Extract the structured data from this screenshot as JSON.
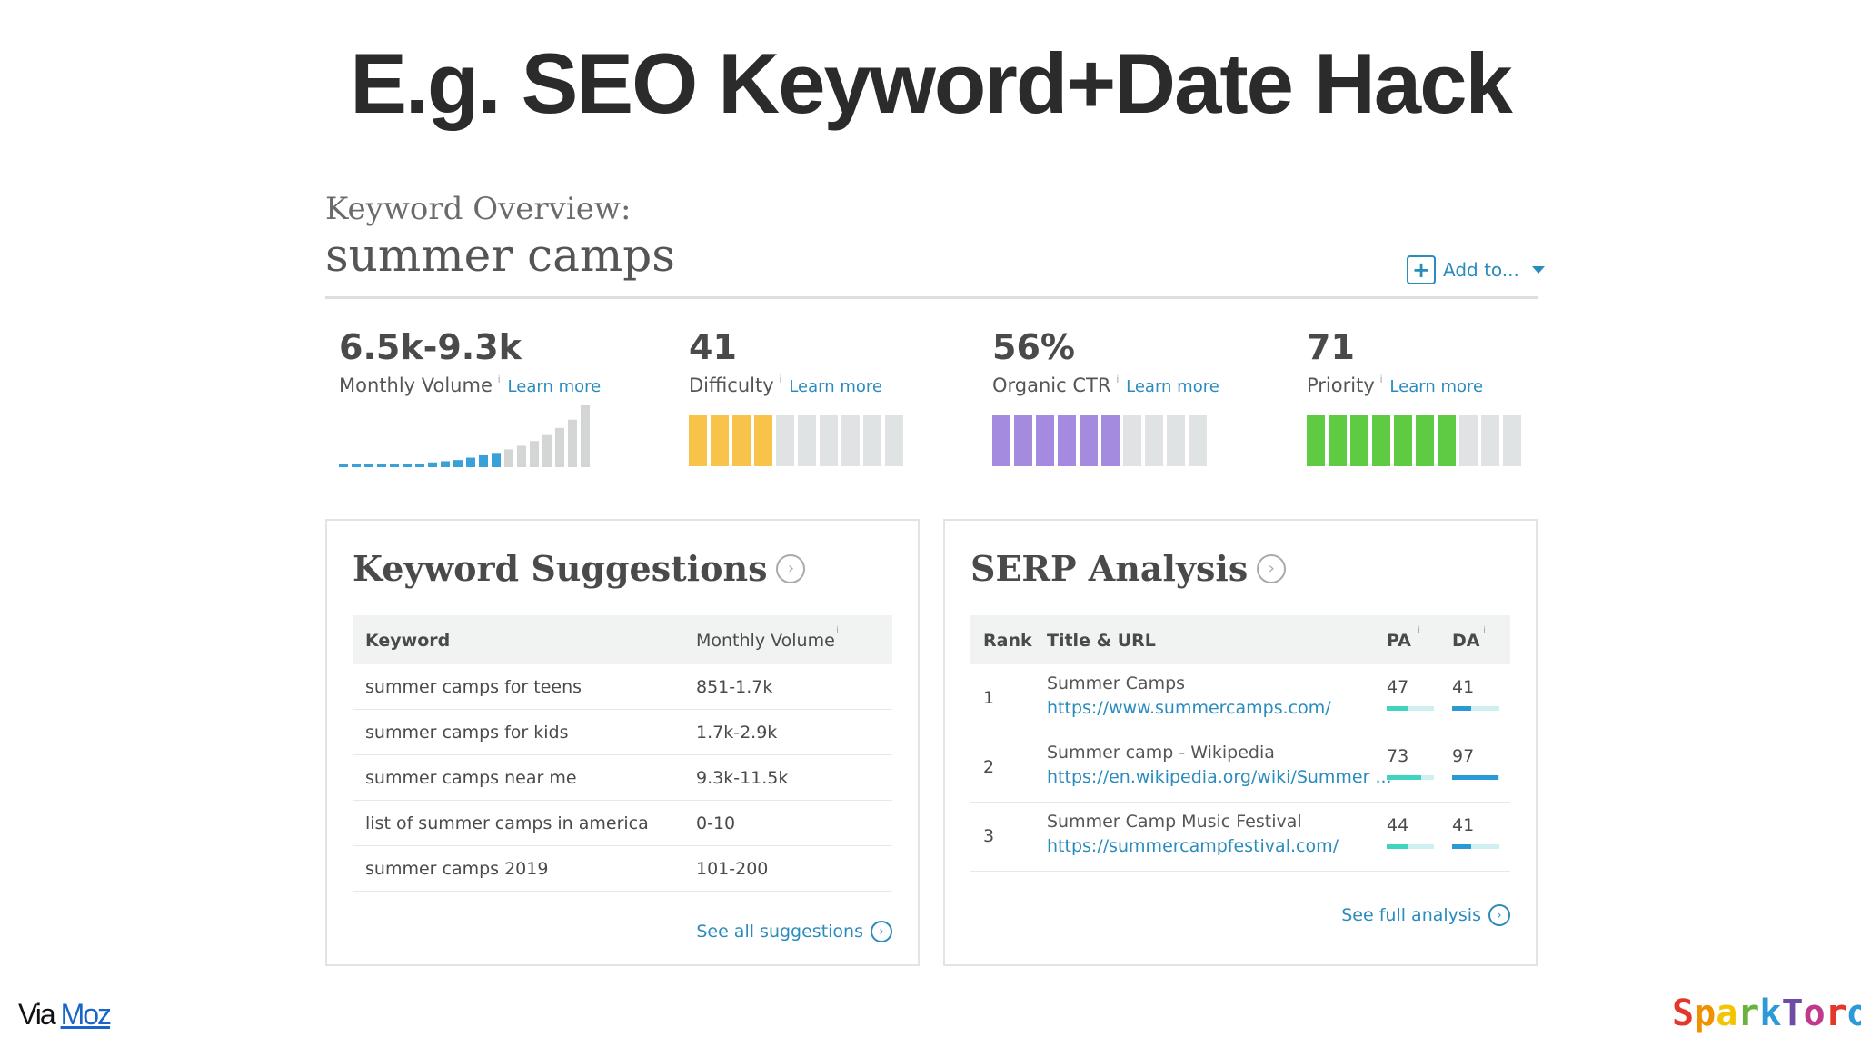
{
  "slide": {
    "title": "E.g. SEO Keyword+Date Hack",
    "via_text": "Via",
    "via_link": "Moz",
    "brand": "SparkToro",
    "brand_colors": [
      "#e4372b",
      "#f29100",
      "#f5c400",
      "#6ab23e",
      "#2b9ad6",
      "#6d4ca6",
      "#c0398a",
      "#e4372b",
      "#2b9ad6"
    ]
  },
  "overview": {
    "label": "Keyword Overview:",
    "term": "summer camps",
    "add_to": "Add to...",
    "metrics": [
      {
        "value": "6.5k-9.3k",
        "name": "Monthly Volume",
        "info": "i",
        "learn": "Learn more"
      },
      {
        "value": "41",
        "name": "Difficulty",
        "info": "i",
        "learn": "Learn more",
        "filled": 4,
        "total": 10,
        "color": "#f8c34a"
      },
      {
        "value": "56%",
        "name": "Organic CTR",
        "info": "i",
        "learn": "Learn more",
        "filled": 6,
        "total": 10,
        "color": "#a48be0"
      },
      {
        "value": "71",
        "name": "Priority",
        "info": "i",
        "learn": "Learn more",
        "filled": 7,
        "total": 10,
        "color": "#5ecb43"
      }
    ],
    "volume_trend": [
      2,
      2,
      2,
      2,
      2,
      3,
      3,
      4,
      5,
      6,
      8,
      10,
      12,
      15,
      18,
      22,
      27,
      33,
      40,
      52
    ]
  },
  "suggestions": {
    "title": "Keyword Suggestions",
    "col_keyword": "Keyword",
    "col_volume": "Monthly Volume",
    "info": "i",
    "rows": [
      {
        "keyword": "summer camps for teens",
        "volume": "851-1.7k"
      },
      {
        "keyword": "summer camps for kids",
        "volume": "1.7k-2.9k"
      },
      {
        "keyword": "summer camps near me",
        "volume": "9.3k-11.5k"
      },
      {
        "keyword": "list of summer camps in america",
        "volume": "0-10"
      },
      {
        "keyword": "summer camps 2019",
        "volume": "101-200"
      }
    ],
    "see_all": "See all suggestions"
  },
  "serp": {
    "title": "SERP Analysis",
    "col_rank": "Rank",
    "col_title": "Title & URL",
    "col_pa": "PA",
    "col_da": "DA",
    "info": "i",
    "rows": [
      {
        "rank": "1",
        "title": "Summer Camps",
        "url": "https://www.summercamps.com/",
        "pa": 47,
        "da": 41
      },
      {
        "rank": "2",
        "title": "Summer camp - Wikipedia",
        "url": "https://en.wikipedia.org/wiki/Summer ...",
        "pa": 73,
        "da": 97
      },
      {
        "rank": "3",
        "title": "Summer Camp Music Festival",
        "url": "https://summercampfestival.com/",
        "pa": 44,
        "da": 41
      }
    ],
    "see_full": "See full analysis",
    "pa_color": "#3fd3c0",
    "da_color": "#2a9ad6"
  }
}
